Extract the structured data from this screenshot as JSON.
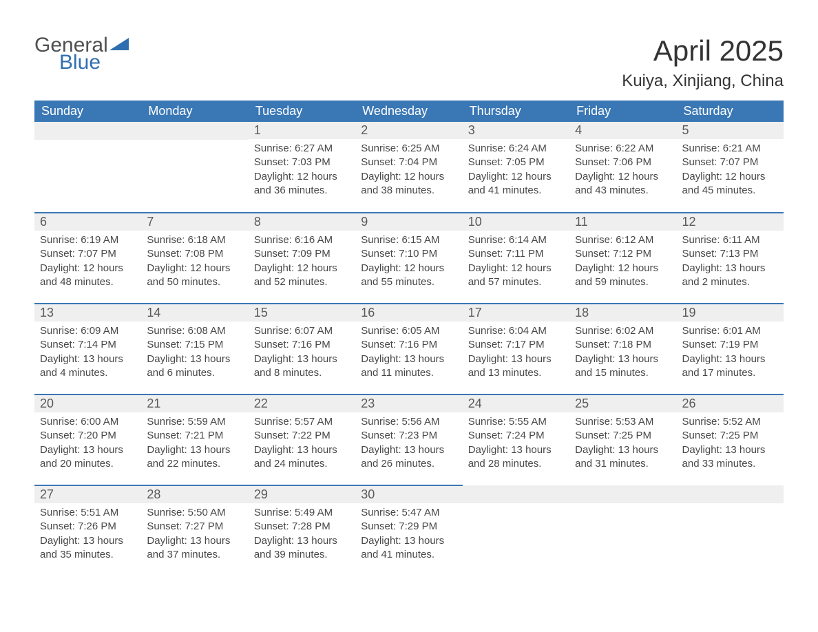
{
  "logo": {
    "word1": "General",
    "word2": "Blue"
  },
  "colors": {
    "header_bg": "#3a77b5",
    "header_text": "#ffffff",
    "daynum_bg": "#efefef",
    "row_border": "#3a77b5",
    "logo_blue": "#2f6fb0",
    "text_main": "#404040"
  },
  "title": "April 2025",
  "location": "Kuiya, Xinjiang, China",
  "days_of_week": [
    "Sunday",
    "Monday",
    "Tuesday",
    "Wednesday",
    "Thursday",
    "Friday",
    "Saturday"
  ],
  "labels": {
    "sunrise": "Sunrise:",
    "sunset": "Sunset:",
    "daylight": "Daylight:"
  },
  "weeks": [
    [
      null,
      null,
      {
        "n": "1",
        "sunrise": "6:27 AM",
        "sunset": "7:03 PM",
        "daylight": "12 hours and 36 minutes."
      },
      {
        "n": "2",
        "sunrise": "6:25 AM",
        "sunset": "7:04 PM",
        "daylight": "12 hours and 38 minutes."
      },
      {
        "n": "3",
        "sunrise": "6:24 AM",
        "sunset": "7:05 PM",
        "daylight": "12 hours and 41 minutes."
      },
      {
        "n": "4",
        "sunrise": "6:22 AM",
        "sunset": "7:06 PM",
        "daylight": "12 hours and 43 minutes."
      },
      {
        "n": "5",
        "sunrise": "6:21 AM",
        "sunset": "7:07 PM",
        "daylight": "12 hours and 45 minutes."
      }
    ],
    [
      {
        "n": "6",
        "sunrise": "6:19 AM",
        "sunset": "7:07 PM",
        "daylight": "12 hours and 48 minutes."
      },
      {
        "n": "7",
        "sunrise": "6:18 AM",
        "sunset": "7:08 PM",
        "daylight": "12 hours and 50 minutes."
      },
      {
        "n": "8",
        "sunrise": "6:16 AM",
        "sunset": "7:09 PM",
        "daylight": "12 hours and 52 minutes."
      },
      {
        "n": "9",
        "sunrise": "6:15 AM",
        "sunset": "7:10 PM",
        "daylight": "12 hours and 55 minutes."
      },
      {
        "n": "10",
        "sunrise": "6:14 AM",
        "sunset": "7:11 PM",
        "daylight": "12 hours and 57 minutes."
      },
      {
        "n": "11",
        "sunrise": "6:12 AM",
        "sunset": "7:12 PM",
        "daylight": "12 hours and 59 minutes."
      },
      {
        "n": "12",
        "sunrise": "6:11 AM",
        "sunset": "7:13 PM",
        "daylight": "13 hours and 2 minutes."
      }
    ],
    [
      {
        "n": "13",
        "sunrise": "6:09 AM",
        "sunset": "7:14 PM",
        "daylight": "13 hours and 4 minutes."
      },
      {
        "n": "14",
        "sunrise": "6:08 AM",
        "sunset": "7:15 PM",
        "daylight": "13 hours and 6 minutes."
      },
      {
        "n": "15",
        "sunrise": "6:07 AM",
        "sunset": "7:16 PM",
        "daylight": "13 hours and 8 minutes."
      },
      {
        "n": "16",
        "sunrise": "6:05 AM",
        "sunset": "7:16 PM",
        "daylight": "13 hours and 11 minutes."
      },
      {
        "n": "17",
        "sunrise": "6:04 AM",
        "sunset": "7:17 PM",
        "daylight": "13 hours and 13 minutes."
      },
      {
        "n": "18",
        "sunrise": "6:02 AM",
        "sunset": "7:18 PM",
        "daylight": "13 hours and 15 minutes."
      },
      {
        "n": "19",
        "sunrise": "6:01 AM",
        "sunset": "7:19 PM",
        "daylight": "13 hours and 17 minutes."
      }
    ],
    [
      {
        "n": "20",
        "sunrise": "6:00 AM",
        "sunset": "7:20 PM",
        "daylight": "13 hours and 20 minutes."
      },
      {
        "n": "21",
        "sunrise": "5:59 AM",
        "sunset": "7:21 PM",
        "daylight": "13 hours and 22 minutes."
      },
      {
        "n": "22",
        "sunrise": "5:57 AM",
        "sunset": "7:22 PM",
        "daylight": "13 hours and 24 minutes."
      },
      {
        "n": "23",
        "sunrise": "5:56 AM",
        "sunset": "7:23 PM",
        "daylight": "13 hours and 26 minutes."
      },
      {
        "n": "24",
        "sunrise": "5:55 AM",
        "sunset": "7:24 PM",
        "daylight": "13 hours and 28 minutes."
      },
      {
        "n": "25",
        "sunrise": "5:53 AM",
        "sunset": "7:25 PM",
        "daylight": "13 hours and 31 minutes."
      },
      {
        "n": "26",
        "sunrise": "5:52 AM",
        "sunset": "7:25 PM",
        "daylight": "13 hours and 33 minutes."
      }
    ],
    [
      {
        "n": "27",
        "sunrise": "5:51 AM",
        "sunset": "7:26 PM",
        "daylight": "13 hours and 35 minutes."
      },
      {
        "n": "28",
        "sunrise": "5:50 AM",
        "sunset": "7:27 PM",
        "daylight": "13 hours and 37 minutes."
      },
      {
        "n": "29",
        "sunrise": "5:49 AM",
        "sunset": "7:28 PM",
        "daylight": "13 hours and 39 minutes."
      },
      {
        "n": "30",
        "sunrise": "5:47 AM",
        "sunset": "7:29 PM",
        "daylight": "13 hours and 41 minutes."
      },
      null,
      null,
      null
    ]
  ]
}
